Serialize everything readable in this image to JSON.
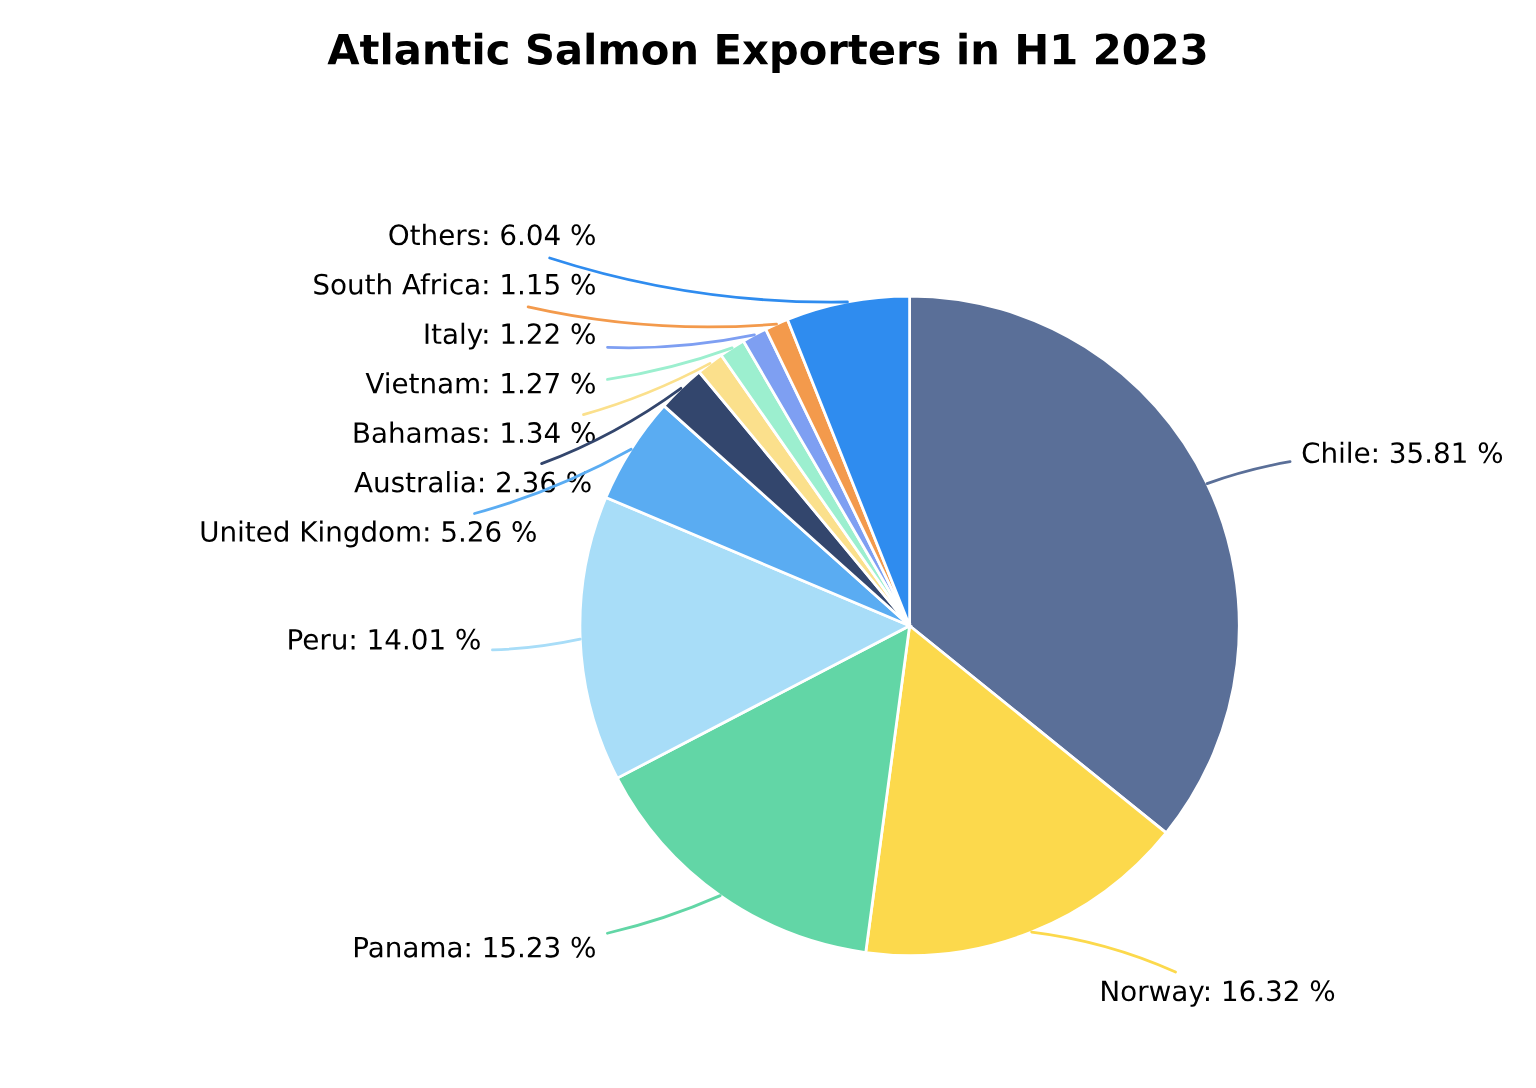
{
  "chart_data": {
    "type": "pie",
    "title": "Atlantic Salmon Exporters in H1 2023",
    "categories": [
      "Chile",
      "Norway",
      "Panama",
      "Peru",
      "United Kingdom",
      "Australia",
      "Bahamas",
      "Vietnam",
      "Italy",
      "South Africa",
      "Others"
    ],
    "values": [
      35.81,
      16.32,
      15.23,
      14.01,
      5.26,
      2.36,
      1.34,
      1.27,
      1.22,
      1.15,
      6.04
    ],
    "value_labels": [
      "35.81 %",
      "16.32 %",
      "15.23 %",
      "14.01 %",
      "5.26 %",
      "2.36 %",
      "1.34 %",
      "1.27 %",
      "1.22 %",
      "1.15 %",
      "6.04 %"
    ],
    "colors": [
      "#5a6f98",
      "#fcd94c",
      "#62d6a6",
      "#a8ddf8",
      "#5aacf2",
      "#33466d",
      "#fbe08c",
      "#9cefcf",
      "#7e9ff2",
      "#f39a4c",
      "#2f8cef"
    ]
  }
}
